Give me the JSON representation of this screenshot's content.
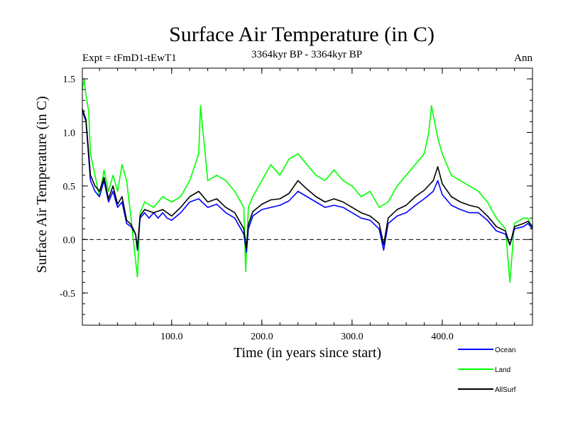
{
  "chart_data": {
    "type": "line",
    "title": "Surface Air Temperature (in C)",
    "subtitle": "3364kyr BP - 3364kyr BP",
    "experiment_label": "Expt = tFmD1-tEwT1",
    "period_label": "Ann",
    "xlabel": "Time (in years since start)",
    "ylabel": "Surface Air Temperature (in C)",
    "xlim": [
      1,
      500
    ],
    "ylim": [
      -0.8,
      1.6
    ],
    "x_ticks": [
      100,
      200,
      300,
      400
    ],
    "x_tick_labels": [
      "100.0",
      "200.0",
      "300.0",
      "400.0"
    ],
    "y_ticks": [
      -0.5,
      0.0,
      0.5,
      1.0,
      1.5
    ],
    "y_tick_labels": [
      "-0.5",
      "0.0",
      "0.5",
      "1.0",
      "1.5"
    ],
    "zero_line": true,
    "series": [
      {
        "name": "Ocean",
        "color": "#0000ff",
        "x": [
          1,
          5,
          10,
          15,
          20,
          25,
          30,
          35,
          40,
          45,
          50,
          55,
          60,
          62,
          65,
          70,
          75,
          80,
          85,
          90,
          95,
          100,
          110,
          120,
          130,
          140,
          150,
          160,
          170,
          180,
          183,
          185,
          190,
          200,
          210,
          220,
          230,
          240,
          250,
          260,
          270,
          280,
          290,
          300,
          310,
          320,
          330,
          335,
          340,
          350,
          360,
          370,
          380,
          390,
          395,
          400,
          410,
          420,
          430,
          440,
          450,
          460,
          470,
          475,
          480,
          490,
          495,
          500
        ],
        "y": [
          1.2,
          1.1,
          0.55,
          0.45,
          0.4,
          0.55,
          0.35,
          0.45,
          0.3,
          0.35,
          0.15,
          0.12,
          0.05,
          -0.1,
          0.2,
          0.25,
          0.2,
          0.25,
          0.2,
          0.25,
          0.2,
          0.18,
          0.25,
          0.35,
          0.38,
          0.3,
          0.33,
          0.25,
          0.2,
          0.05,
          -0.12,
          0.1,
          0.22,
          0.28,
          0.3,
          0.32,
          0.36,
          0.45,
          0.4,
          0.35,
          0.3,
          0.32,
          0.3,
          0.25,
          0.2,
          0.18,
          0.1,
          -0.1,
          0.15,
          0.22,
          0.25,
          0.32,
          0.38,
          0.45,
          0.55,
          0.42,
          0.32,
          0.28,
          0.25,
          0.25,
          0.18,
          0.08,
          0.05,
          -0.05,
          0.1,
          0.12,
          0.15,
          0.1
        ]
      },
      {
        "name": "Land",
        "color": "#00ff00",
        "x": [
          1,
          3,
          5,
          8,
          10,
          15,
          20,
          25,
          30,
          35,
          40,
          45,
          50,
          55,
          60,
          62,
          65,
          70,
          80,
          90,
          100,
          110,
          120,
          130,
          132,
          140,
          150,
          160,
          170,
          180,
          182,
          185,
          190,
          200,
          210,
          220,
          230,
          240,
          250,
          260,
          270,
          280,
          290,
          300,
          310,
          320,
          330,
          340,
          350,
          360,
          370,
          380,
          385,
          388,
          395,
          400,
          410,
          420,
          430,
          440,
          450,
          460,
          470,
          475,
          480,
          490,
          495,
          500
        ],
        "y": [
          1.4,
          1.5,
          1.35,
          1.2,
          0.8,
          0.6,
          0.4,
          0.65,
          0.45,
          0.6,
          0.45,
          0.7,
          0.55,
          0.2,
          -0.2,
          -0.35,
          0.25,
          0.35,
          0.3,
          0.4,
          0.35,
          0.4,
          0.55,
          0.8,
          1.25,
          0.55,
          0.6,
          0.55,
          0.45,
          0.3,
          -0.3,
          0.3,
          0.4,
          0.55,
          0.7,
          0.6,
          0.75,
          0.8,
          0.7,
          0.6,
          0.55,
          0.65,
          0.55,
          0.5,
          0.4,
          0.45,
          0.3,
          0.35,
          0.5,
          0.6,
          0.7,
          0.8,
          1.0,
          1.25,
          0.95,
          0.8,
          0.6,
          0.55,
          0.5,
          0.45,
          0.35,
          0.2,
          0.1,
          -0.4,
          0.15,
          0.2,
          0.2,
          0.1
        ]
      },
      {
        "name": "AllSurf",
        "color": "#000000",
        "x": [
          1,
          5,
          10,
          15,
          20,
          25,
          30,
          35,
          40,
          45,
          50,
          55,
          60,
          62,
          65,
          70,
          80,
          90,
          100,
          110,
          120,
          130,
          140,
          150,
          160,
          170,
          180,
          183,
          185,
          190,
          200,
          210,
          220,
          230,
          240,
          250,
          260,
          270,
          280,
          290,
          300,
          310,
          320,
          330,
          335,
          340,
          350,
          360,
          370,
          380,
          390,
          395,
          400,
          410,
          420,
          430,
          440,
          450,
          460,
          470,
          475,
          480,
          490,
          495,
          500
        ],
        "y": [
          1.22,
          1.12,
          0.6,
          0.5,
          0.45,
          0.58,
          0.38,
          0.5,
          0.33,
          0.4,
          0.18,
          0.14,
          0.05,
          -0.08,
          0.22,
          0.28,
          0.25,
          0.28,
          0.22,
          0.3,
          0.4,
          0.45,
          0.35,
          0.38,
          0.3,
          0.25,
          0.1,
          -0.08,
          0.14,
          0.26,
          0.33,
          0.37,
          0.38,
          0.43,
          0.55,
          0.47,
          0.4,
          0.35,
          0.38,
          0.35,
          0.3,
          0.25,
          0.22,
          0.15,
          -0.05,
          0.2,
          0.28,
          0.32,
          0.4,
          0.46,
          0.55,
          0.68,
          0.52,
          0.4,
          0.35,
          0.32,
          0.3,
          0.22,
          0.12,
          0.08,
          -0.05,
          0.12,
          0.15,
          0.17,
          0.12
        ]
      }
    ]
  }
}
